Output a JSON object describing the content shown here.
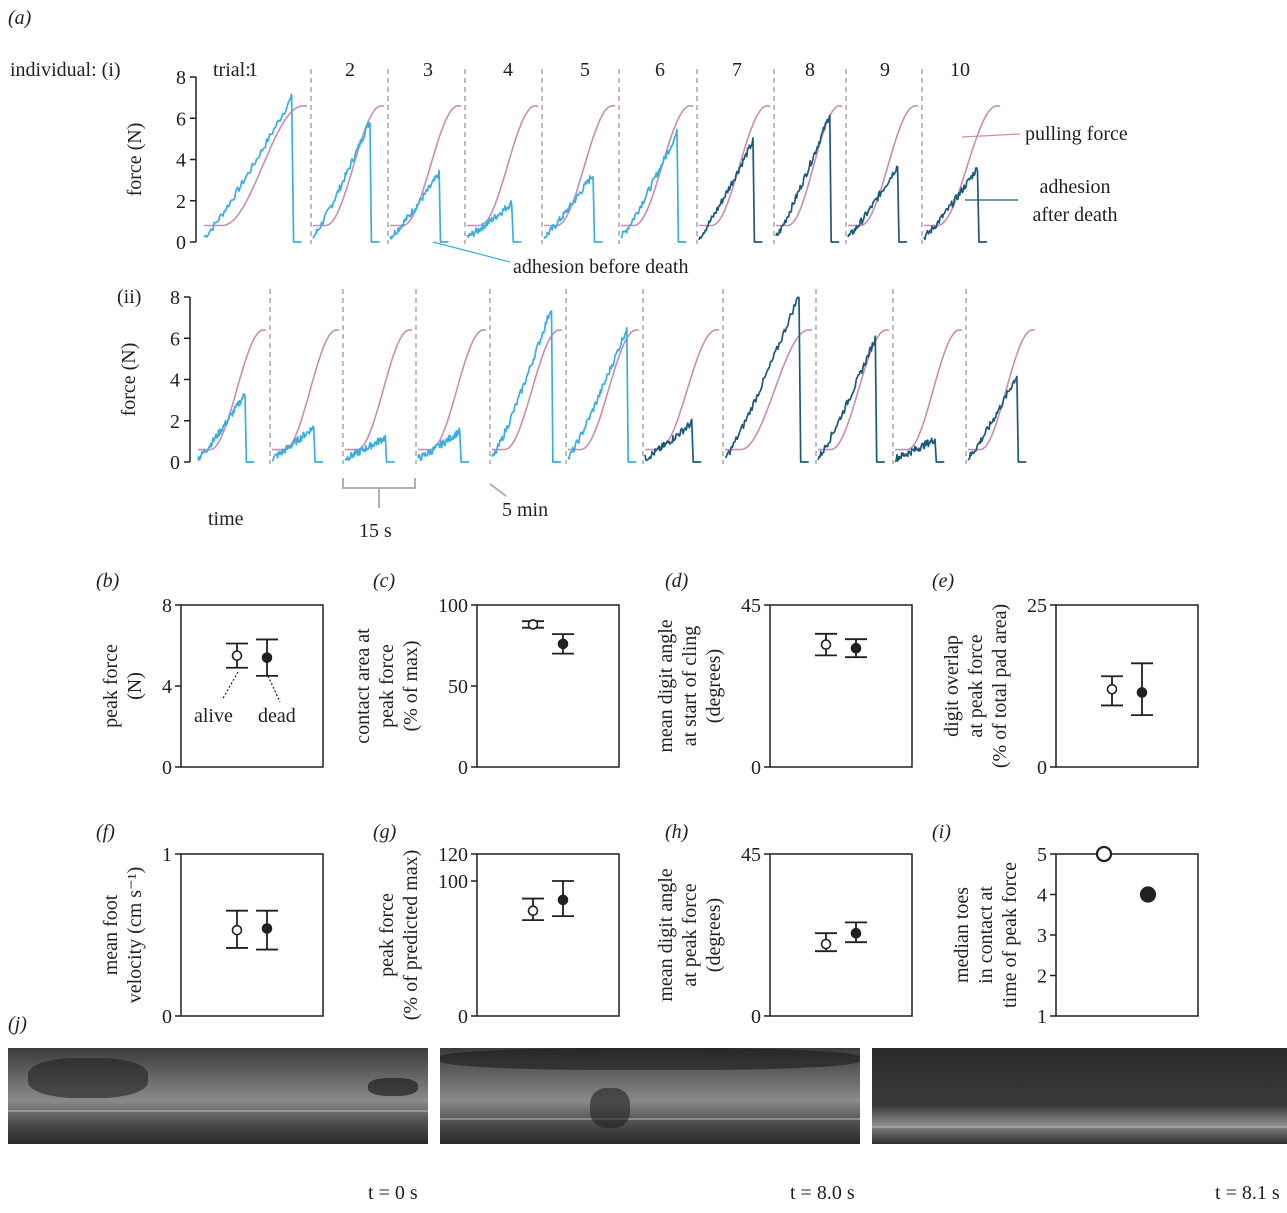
{
  "panel_labels": {
    "a": "(a)",
    "b": "(b)",
    "c": "(c)",
    "d": "(d)",
    "e": "(e)",
    "f": "(f)",
    "g": "(g)",
    "h": "(h)",
    "i": "(i)",
    "j": "(j)"
  },
  "colors": {
    "pulling": "#c98cb5",
    "alive": "#3aaee0",
    "dead": "#1d5a7a",
    "gray": "#9a9a9a",
    "ink": "#231f20"
  },
  "chart_data": [
    {
      "type": "line",
      "title": "",
      "row_label": "individual: (i)",
      "trial_prefix": "trial:",
      "trials": [
        "1",
        "2",
        "3",
        "4",
        "5",
        "6",
        "7",
        "8",
        "9",
        "10"
      ],
      "ylabel": "force (N)",
      "ylim": [
        0,
        8
      ],
      "yticks": [
        "0",
        "2",
        "4",
        "6",
        "8"
      ],
      "pulling_force_max": 6.6,
      "pulling_force_start": 0.8,
      "adhesion_peak_N": [
        7.0,
        5.9,
        3.3,
        1.9,
        3.3,
        5.3,
        4.9,
        6.2,
        3.7,
        3.6
      ],
      "state": [
        "alive",
        "alive",
        "alive",
        "alive",
        "alive",
        "alive",
        "dead",
        "dead",
        "dead",
        "dead"
      ],
      "series": [
        {
          "name": "pulling force"
        },
        {
          "name": "adhesion before death"
        },
        {
          "name": "adhesion after death"
        }
      ],
      "annotations": {
        "pulling": "pulling force",
        "after1": "adhesion",
        "after2": "after death",
        "before": "adhesion before death"
      }
    },
    {
      "type": "line",
      "row_label": "(ii)",
      "ylabel": "force (N)",
      "ylim": [
        0,
        8
      ],
      "yticks": [
        "0",
        "2",
        "4",
        "6",
        "8"
      ],
      "pulling_force_max": 6.4,
      "pulling_force_start": 0.6,
      "adhesion_peak_N": [
        3.3,
        1.7,
        1.2,
        1.5,
        7.5,
        6.5,
        1.9,
        8.1,
        6.0,
        1.1,
        4.2
      ],
      "state": [
        "alive",
        "alive",
        "alive",
        "alive",
        "alive",
        "alive",
        "dead",
        "dead",
        "dead",
        "dead",
        "dead"
      ],
      "scale_labels": {
        "time": "time",
        "trial_span": "15 s",
        "interval": "5 min"
      }
    },
    {
      "type": "scatter",
      "panel": "b",
      "ylabel_lines": [
        "peak force",
        "(N)"
      ],
      "ylim": [
        0,
        8
      ],
      "yticks": [
        "0",
        "4",
        "8"
      ],
      "alive": {
        "mean": 5.5,
        "low": 4.9,
        "high": 6.1
      },
      "dead": {
        "mean": 5.4,
        "low": 4.5,
        "high": 6.3
      },
      "annotations": {
        "alive": "alive",
        "dead": "dead"
      }
    },
    {
      "type": "scatter",
      "panel": "c",
      "ylabel_lines": [
        "contact area at",
        "peak force",
        "(% of max)"
      ],
      "ylim": [
        0,
        100
      ],
      "yticks": [
        "0",
        "50",
        "100"
      ],
      "alive": {
        "mean": 88,
        "low": 86,
        "high": 90
      },
      "dead": {
        "mean": 76,
        "low": 70,
        "high": 82
      }
    },
    {
      "type": "scatter",
      "panel": "d",
      "ylabel_lines": [
        "mean digit angle",
        "at start of cling",
        "(degrees)"
      ],
      "ylim": [
        0,
        45
      ],
      "yticks": [
        "0",
        "45"
      ],
      "alive": {
        "mean": 34,
        "low": 31,
        "high": 37
      },
      "dead": {
        "mean": 33,
        "low": 30.5,
        "high": 35.5
      }
    },
    {
      "type": "scatter",
      "panel": "e",
      "ylabel_lines": [
        "digit overlap",
        "at peak force",
        "(% of total pad area)"
      ],
      "ylim": [
        0,
        25
      ],
      "yticks": [
        "0",
        "25"
      ],
      "alive": {
        "mean": 12,
        "low": 9.5,
        "high": 14
      },
      "dead": {
        "mean": 11.5,
        "low": 8,
        "high": 16
      }
    },
    {
      "type": "scatter",
      "panel": "f",
      "ylabel_lines": [
        "mean foot",
        "velocity (cm s⁻¹)"
      ],
      "ylim": [
        0,
        1
      ],
      "yticks": [
        "0",
        "1"
      ],
      "alive": {
        "mean": 0.53,
        "low": 0.42,
        "high": 0.65
      },
      "dead": {
        "mean": 0.54,
        "low": 0.41,
        "high": 0.65
      }
    },
    {
      "type": "scatter",
      "panel": "g",
      "ylabel_lines": [
        "peak force",
        "(% of predicted max)"
      ],
      "ylim": [
        0,
        120
      ],
      "yticks": [
        "0",
        "100",
        "120"
      ],
      "alive": {
        "mean": 78,
        "low": 71,
        "high": 87
      },
      "dead": {
        "mean": 86,
        "low": 74,
        "high": 100
      }
    },
    {
      "type": "scatter",
      "panel": "h",
      "ylabel_lines": [
        "mean digit angle",
        "at peak force",
        "(degrees)"
      ],
      "ylim": [
        0,
        45
      ],
      "yticks": [
        "0",
        "45"
      ],
      "alive": {
        "mean": 20,
        "low": 18,
        "high": 23
      },
      "dead": {
        "mean": 23,
        "low": 20.5,
        "high": 26
      }
    },
    {
      "type": "scatter",
      "panel": "i",
      "ylabel_lines": [
        "median toes",
        "in contact at",
        "time of peak force"
      ],
      "ylim": [
        1,
        5
      ],
      "yticks": [
        "1",
        "2",
        "3",
        "4",
        "5"
      ],
      "alive": {
        "mean": 5
      },
      "dead": {
        "mean": 4
      }
    }
  ],
  "photos": [
    {
      "time": "t = 0 s"
    },
    {
      "time": "t = 8.0 s"
    },
    {
      "time": "t = 8.1 s"
    }
  ]
}
